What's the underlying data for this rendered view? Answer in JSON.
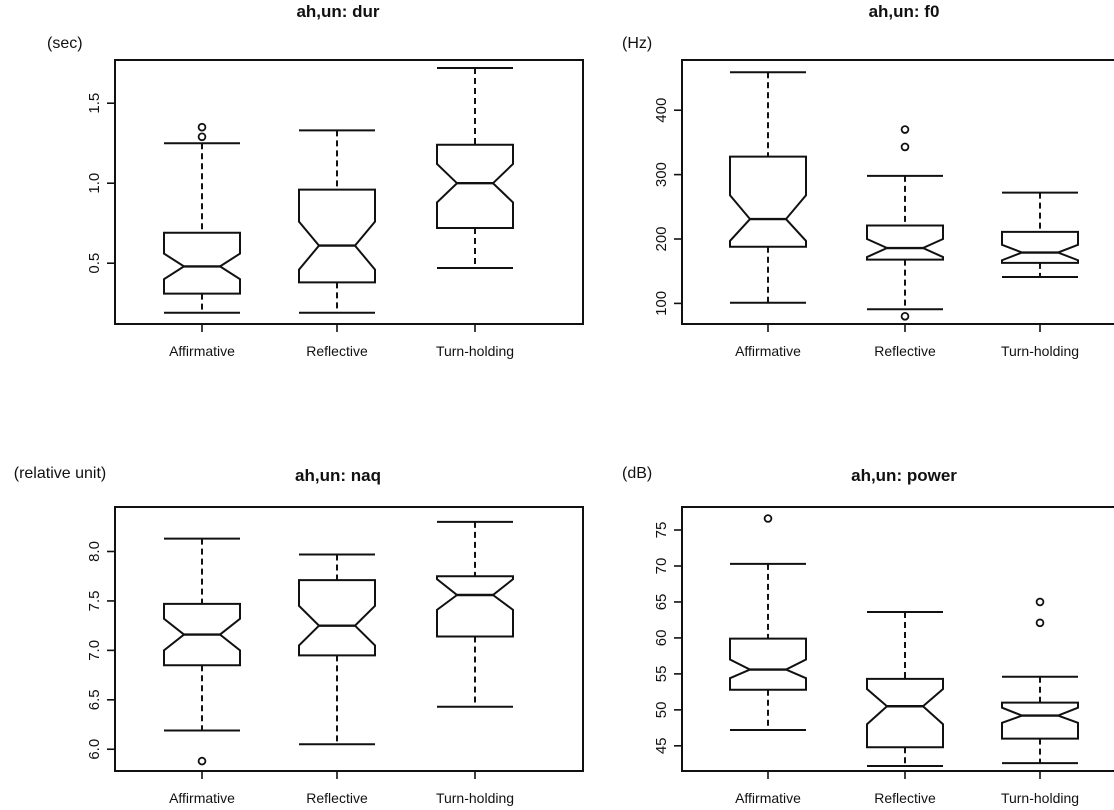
{
  "chart_data": [
    {
      "type": "boxplot",
      "notched": true,
      "title": "ah,un: dur",
      "unit_label": "(sec)",
      "categories": [
        "Affirmative",
        "Reflective",
        "Turn-holding"
      ],
      "yticks": [
        0.5,
        1.0,
        1.5
      ],
      "ytick_labels": [
        "0.5",
        "1.0",
        "1.5"
      ],
      "ylim": [
        0.12,
        1.77
      ],
      "boxes": [
        {
          "whisker_low": 0.19,
          "q1": 0.31,
          "median": 0.48,
          "q3": 0.69,
          "whisker_high": 1.25,
          "notch_low": 0.4,
          "notch_high": 0.56,
          "outliers": [
            1.29,
            1.35
          ]
        },
        {
          "whisker_low": 0.19,
          "q1": 0.38,
          "median": 0.61,
          "q3": 0.96,
          "whisker_high": 1.33,
          "notch_low": 0.46,
          "notch_high": 0.76
        },
        {
          "whisker_low": 0.47,
          "q1": 0.72,
          "median": 1.0,
          "q3": 1.24,
          "whisker_high": 1.72,
          "notch_low": 0.88,
          "notch_high": 1.12
        }
      ]
    },
    {
      "type": "boxplot",
      "notched": true,
      "title": "ah,un: f0",
      "unit_label": "(Hz)",
      "categories": [
        "Affirmative",
        "Reflective",
        "Turn-holding"
      ],
      "yticks": [
        100,
        200,
        300,
        400
      ],
      "ytick_labels": [
        "100",
        "200",
        "300",
        "400"
      ],
      "ylim": [
        68,
        478
      ],
      "boxes": [
        {
          "whisker_low": 101,
          "q1": 188,
          "median": 231,
          "q3": 328,
          "whisker_high": 459,
          "notch_low": 197,
          "notch_high": 268
        },
        {
          "whisker_low": 91,
          "q1": 168,
          "median": 186,
          "q3": 221,
          "whisker_high": 298,
          "notch_low": 172,
          "notch_high": 200,
          "outliers": [
            80,
            343,
            370
          ]
        },
        {
          "whisker_low": 141,
          "q1": 163,
          "median": 179,
          "q3": 211,
          "whisker_high": 272,
          "notch_low": 167,
          "notch_high": 191
        }
      ]
    },
    {
      "type": "boxplot",
      "notched": true,
      "title": "ah,un: naq",
      "unit_label": "(relative unit)",
      "categories": [
        "Affirmative",
        "Reflective",
        "Turn-holding"
      ],
      "yticks": [
        6.0,
        6.5,
        7.0,
        7.5,
        8.0
      ],
      "ytick_labels": [
        "6.0",
        "6.5",
        "7.0",
        "7.5",
        "8.0"
      ],
      "ylim": [
        5.78,
        8.45
      ],
      "boxes": [
        {
          "whisker_low": 6.19,
          "q1": 6.85,
          "median": 7.16,
          "q3": 7.47,
          "whisker_high": 8.13,
          "notch_low": 7.0,
          "notch_high": 7.32,
          "outliers": [
            5.88
          ]
        },
        {
          "whisker_low": 6.05,
          "q1": 6.95,
          "median": 7.25,
          "q3": 7.71,
          "whisker_high": 7.97,
          "notch_low": 7.05,
          "notch_high": 7.45
        },
        {
          "whisker_low": 6.43,
          "q1": 7.14,
          "median": 7.56,
          "q3": 7.75,
          "whisker_high": 8.3,
          "notch_low": 7.41,
          "notch_high": 7.72
        }
      ]
    },
    {
      "type": "boxplot",
      "notched": true,
      "title": "ah,un: power",
      "unit_label": "(dB)",
      "categories": [
        "Affirmative",
        "Reflective",
        "Turn-holding"
      ],
      "yticks": [
        45,
        50,
        55,
        60,
        65,
        70,
        75
      ],
      "ytick_labels": [
        "45",
        "50",
        "55",
        "60",
        "65",
        "70",
        "75"
      ],
      "ylim": [
        41.5,
        78.2
      ],
      "boxes": [
        {
          "whisker_low": 47.2,
          "q1": 52.8,
          "median": 55.6,
          "q3": 59.9,
          "whisker_high": 70.3,
          "notch_low": 54.4,
          "notch_high": 57.0,
          "outliers": [
            76.6
          ]
        },
        {
          "whisker_low": 42.2,
          "q1": 44.8,
          "median": 50.5,
          "q3": 54.3,
          "whisker_high": 63.6,
          "notch_low": 48.0,
          "notch_high": 52.9
        },
        {
          "whisker_low": 42.6,
          "q1": 46.0,
          "median": 49.2,
          "q3": 51.0,
          "whisker_high": 54.6,
          "notch_low": 48.2,
          "notch_high": 50.3,
          "outliers": [
            62.1,
            65.0
          ]
        }
      ]
    }
  ]
}
